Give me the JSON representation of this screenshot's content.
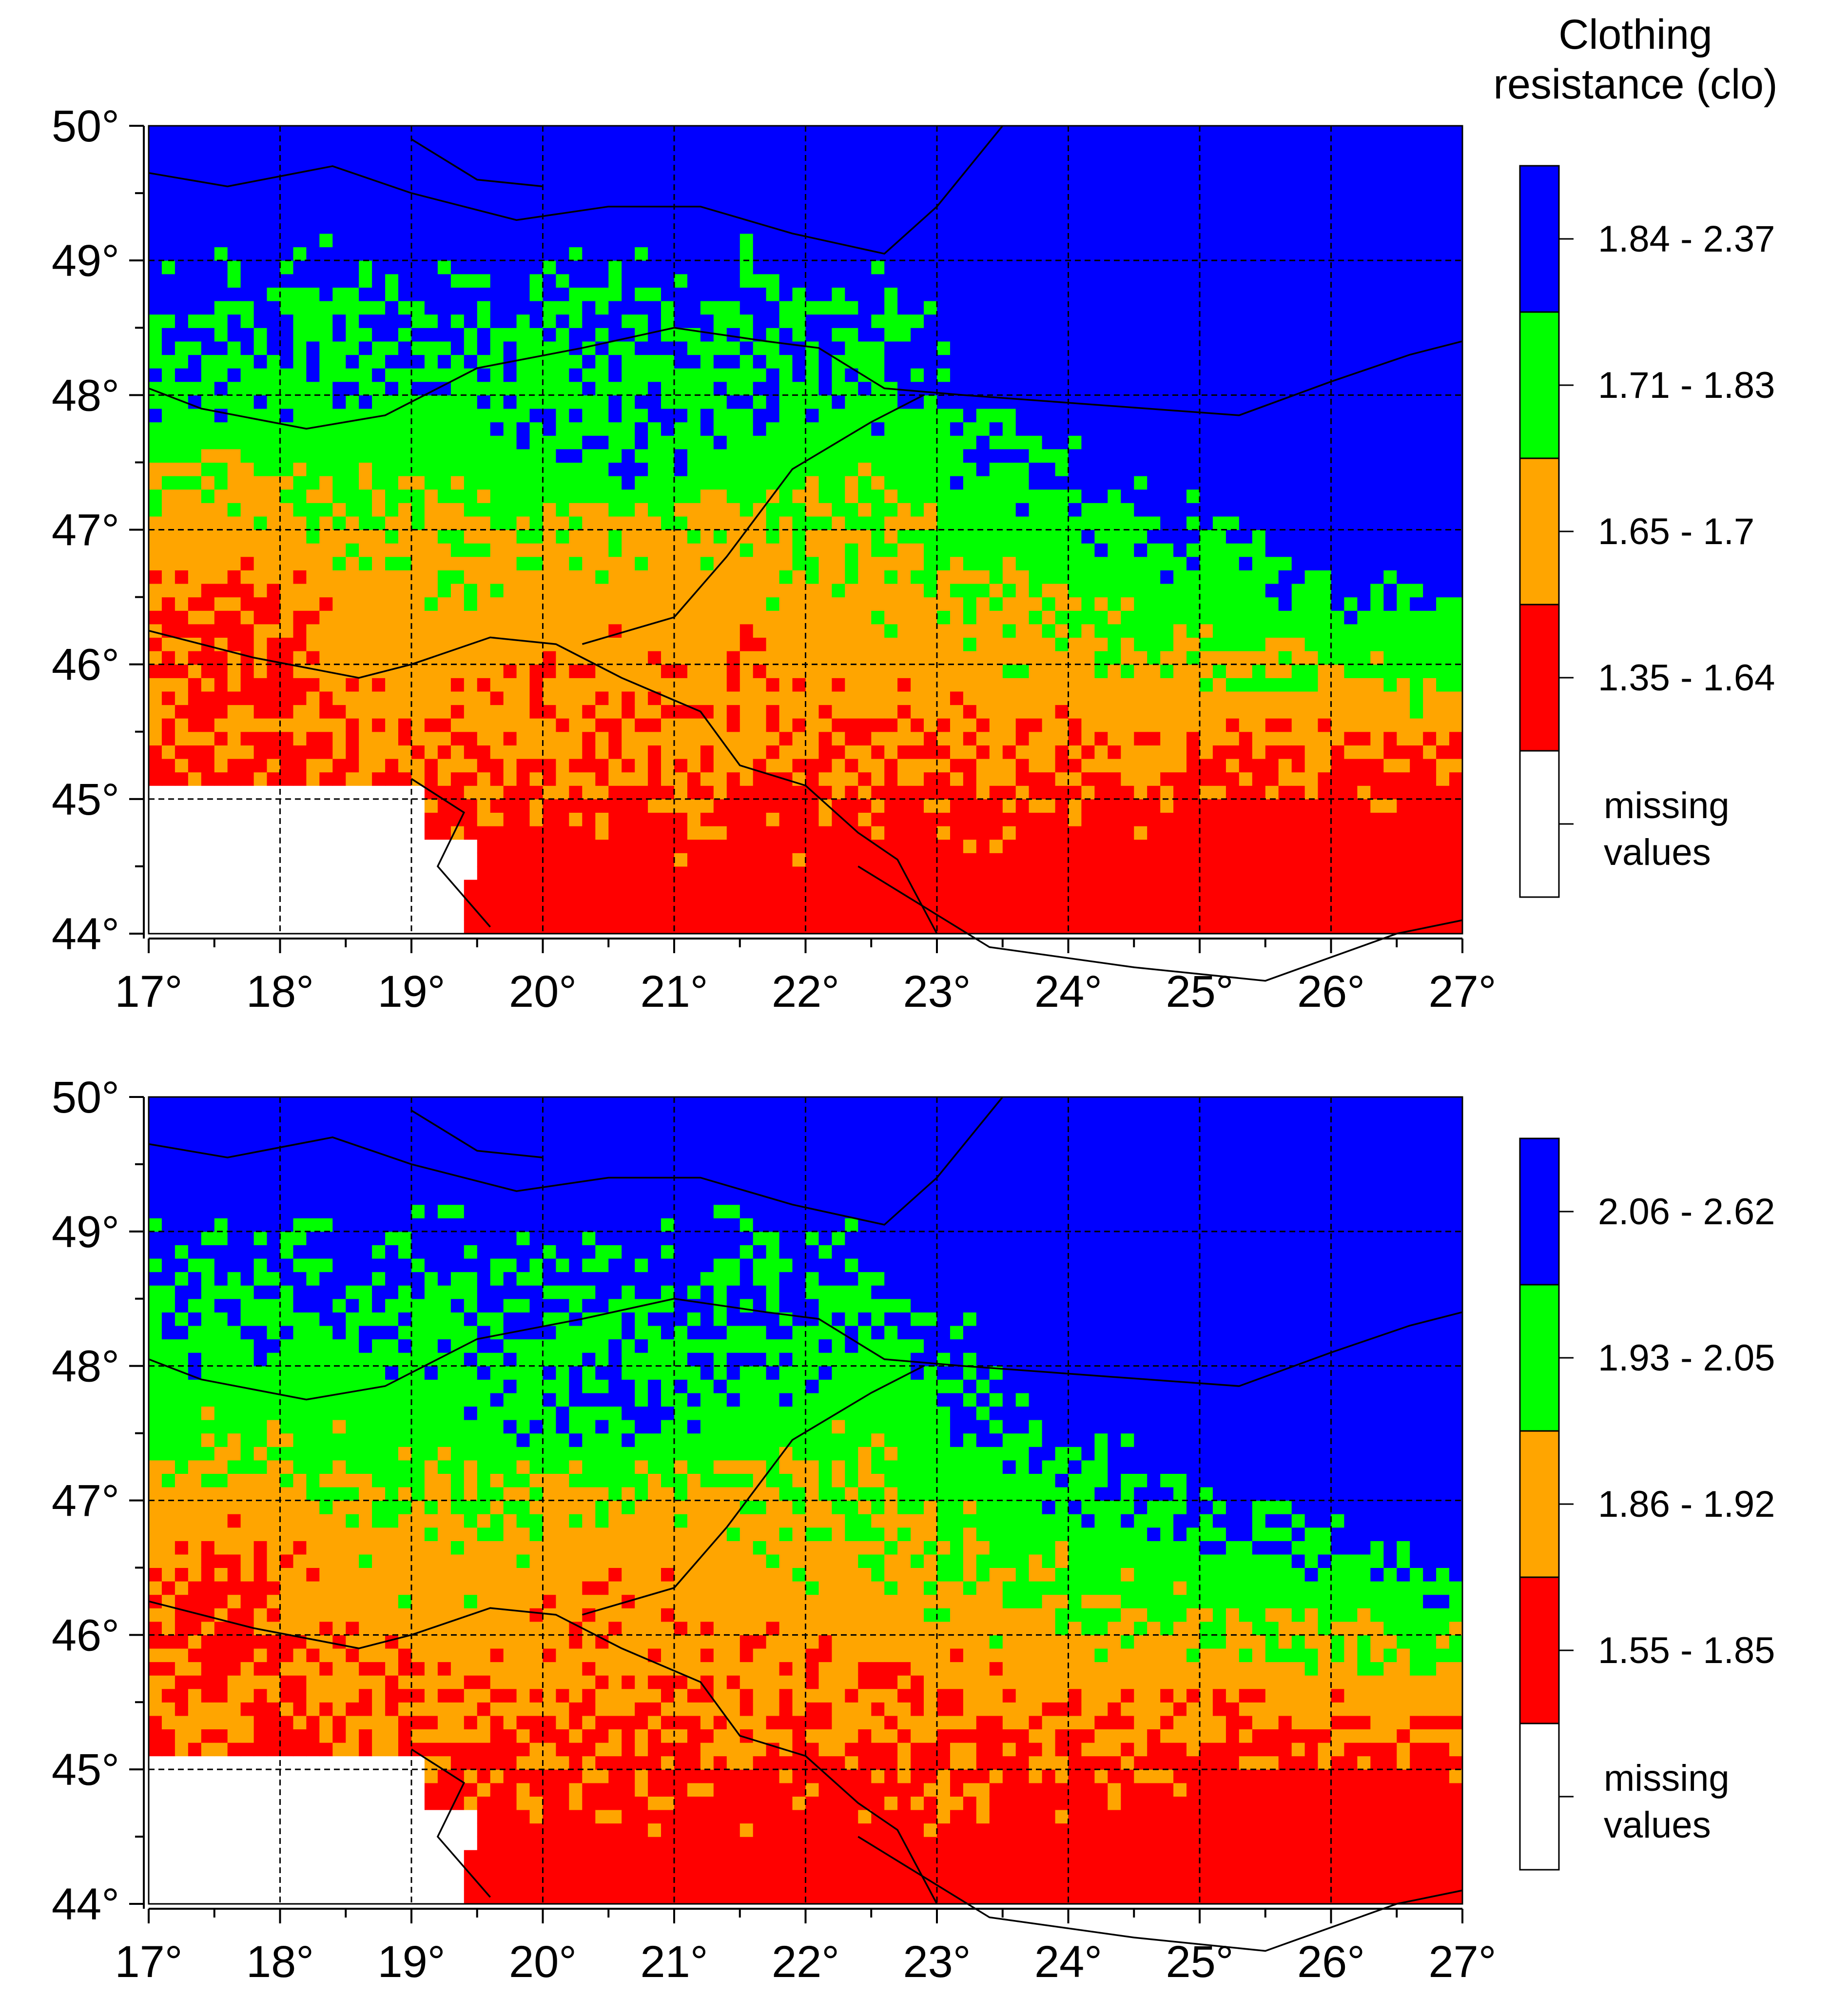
{
  "legend_title": "Clothing\nresistance (clo)",
  "x_ticks": [
    "17°",
    "18°",
    "19°",
    "20°",
    "21°",
    "22°",
    "23°",
    "24°",
    "25°",
    "26°",
    "27°"
  ],
  "y_ticks": [
    "44°",
    "45°",
    "46°",
    "47°",
    "48°",
    "49°",
    "50°"
  ],
  "colors": {
    "blue": "#0000ff",
    "green": "#00ff00",
    "orange": "#ffa500",
    "red": "#ff0000",
    "missing": "#ffffff"
  },
  "panels": [
    {
      "legend": [
        {
          "label": "1.84 - 2.37",
          "color": "#0000ff"
        },
        {
          "label": "1.71 - 1.83",
          "color": "#00ff00"
        },
        {
          "label": "1.65 - 1.7",
          "color": "#ffa500"
        },
        {
          "label": "1.35 - 1.64",
          "color": "#ff0000"
        },
        {
          "label": "missing values",
          "color": "#ffffff"
        }
      ]
    },
    {
      "legend": [
        {
          "label": "2.06 - 2.62",
          "color": "#0000ff"
        },
        {
          "label": "1.93 - 2.05",
          "color": "#00ff00"
        },
        {
          "label": "1.86 - 1.92",
          "color": "#ffa500"
        },
        {
          "label": "1.55 - 1.85",
          "color": "#ff0000"
        },
        {
          "label": "missing values",
          "color": "#ffffff"
        }
      ]
    }
  ]
}
